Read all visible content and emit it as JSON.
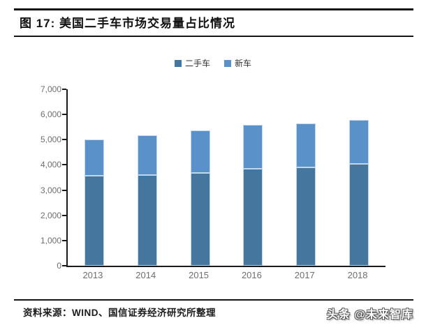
{
  "figure": {
    "title": "图 17:  美国二手车市场交易量占比情况",
    "source": "资料来源：WIND、国信证券经济研究所整理",
    "watermark": "头条 @未来智库"
  },
  "colors": {
    "used_car_bar": "#44769E",
    "new_car_bar": "#5A91C8",
    "axis_line": "#1a1a1a",
    "tick_label": "#6e6e6e"
  },
  "chart_data": {
    "type": "bar",
    "stacked": true,
    "title": "美国二手车市场交易量占比情况",
    "xlabel": "",
    "ylabel": "",
    "categories": [
      "2013",
      "2014",
      "2015",
      "2016",
      "2017",
      "2018"
    ],
    "series": [
      {
        "name": "二手车",
        "color": "#44769E",
        "values": [
          3560,
          3600,
          3690,
          3860,
          3910,
          4030
        ]
      },
      {
        "name": "新车",
        "color": "#5A91C8",
        "values": [
          1460,
          1580,
          1670,
          1730,
          1730,
          1750
        ]
      }
    ],
    "totals": [
      5020,
      5180,
      5360,
      5590,
      5640,
      5780
    ],
    "ylim": [
      0,
      7000
    ],
    "ytick_interval": 1000,
    "ytick_labels": [
      "0",
      "1,000",
      "2,000",
      "3,000",
      "4,000",
      "5,000",
      "6,000",
      "7,000"
    ],
    "grid": false,
    "legend_position": "top-center"
  }
}
